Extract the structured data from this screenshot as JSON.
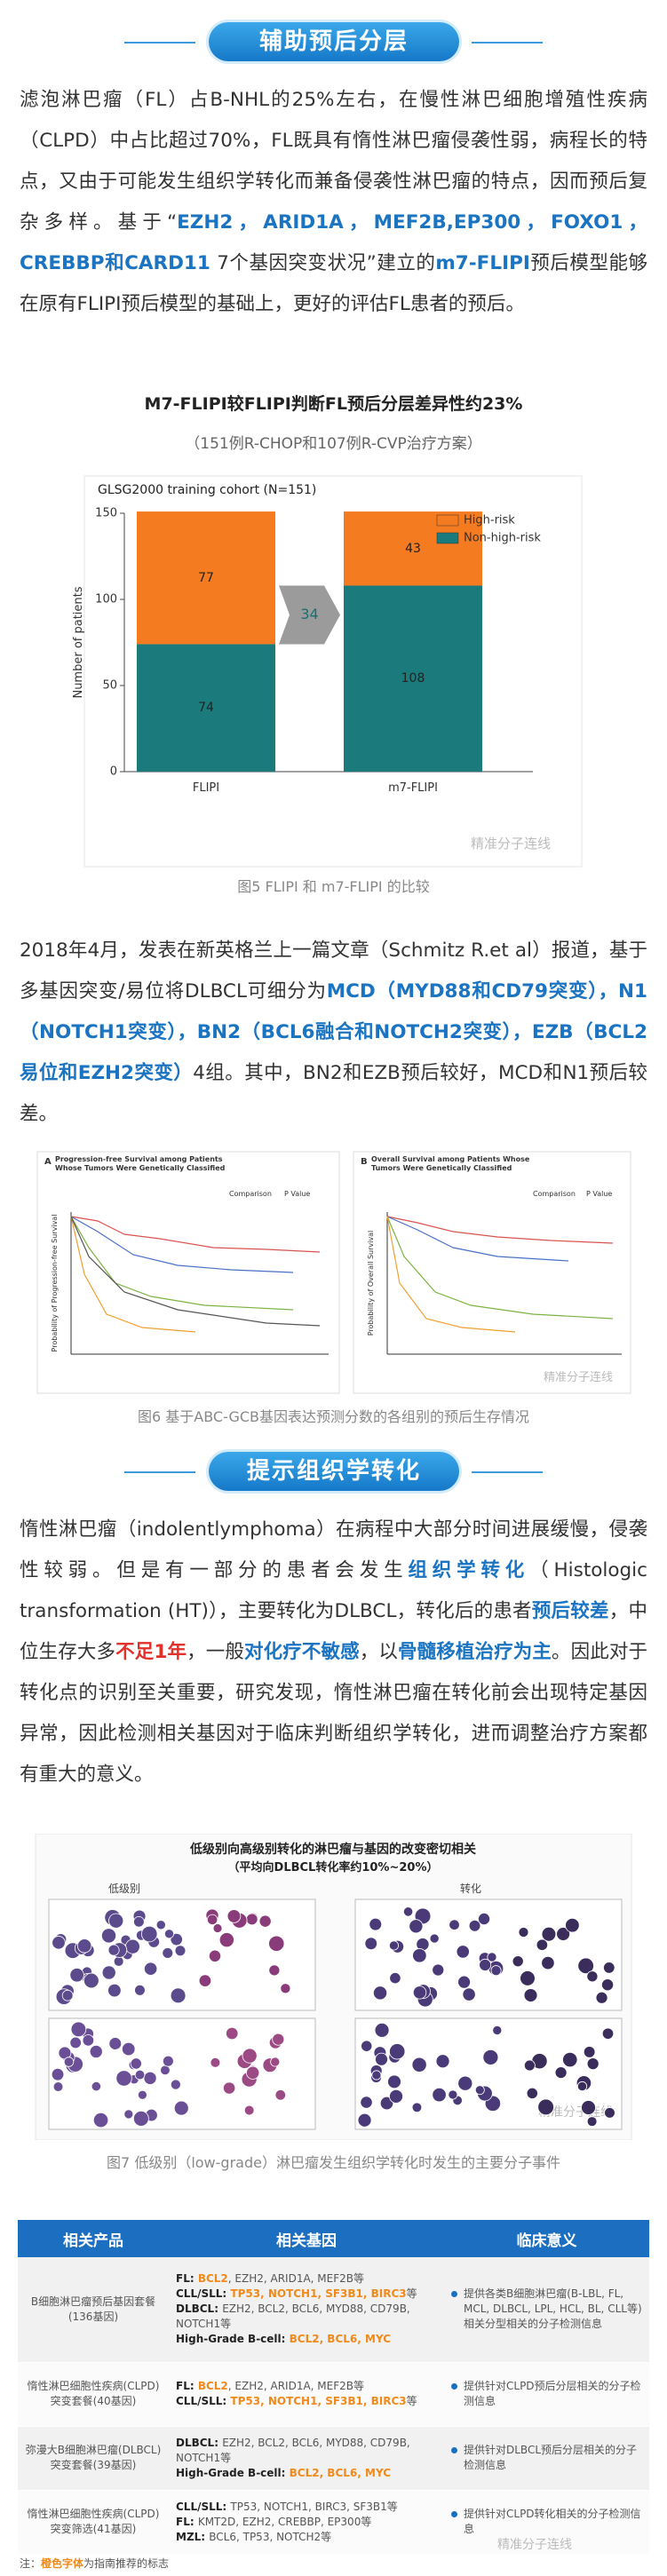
{
  "section1": {
    "header": "辅助预后分层",
    "paragraph": [
      "滤泡淋巴瘤（FL）占B-NHL的25%左右，在慢性淋巴细胞增殖性疾病（CLPD）中占比超过70%，FL既具有惰性淋巴瘤侵袭性弱，病程长的特点，又由于可能发生组织学转化而兼备侵袭性淋巴瘤的特点，因而预后复杂多样。基于“",
      {
        "text": "EZH2，ARID1A，MEF2B,EP300，FOXO1，CREBBP和CARD11",
        "style": "blue"
      },
      " 7个基因突变状况”建立的",
      {
        "text": "m7-FLIPI",
        "style": "blue"
      },
      "预后模型能够在原有FLIPI预后模型的基础上，更好的评估FL患者的预后。"
    ]
  },
  "figure5": {
    "title": "M7-FLIPI较FLIPI判断FL预后分层差异性约23%",
    "subtitle": "（151例R-CHOP和107例R-CVP治疗方案）",
    "caption": "图5 FLIPI 和 m7-FLIPI 的比较"
  },
  "chart_data": {
    "type": "bar",
    "stacked": true,
    "title": "GLSG2000 training cohort (N=151)",
    "categories": [
      "FLIPI",
      "m7-FLIPI"
    ],
    "series": [
      {
        "name": "Non-high-risk",
        "color": "#1b7b7c",
        "values": [
          74,
          108
        ]
      },
      {
        "name": "High-risk",
        "color": "#f47b20",
        "values": [
          77,
          43
        ]
      }
    ],
    "ylabel": "Number of patients",
    "ylim": [
      0,
      150
    ],
    "yticks": [
      0,
      50,
      100,
      150
    ],
    "annotation": 34,
    "legend": "upper right"
  },
  "watermark": "精准分子连线",
  "section2": {
    "paragraph": [
      "2018年4月，发表在新英格兰上一篇文章（Schmitz R.et al）报道，基于多基因突变/易位将DLBCL可细分为",
      {
        "text": "MCD（MYD88和CD79突变），N1（NOTCH1突变），BN2（BCL6融合和NOTCH2突变），EZB（BCL2易位和EZH2突变）",
        "style": "blue"
      },
      "4组。其中，BN2和EZB预后较好，MCD和N1预后较差。"
    ]
  },
  "figure6": {
    "panels": [
      {
        "letter": "A",
        "title": "Progression-free Survival among Patients Whose Tumors Were Genetically Classified",
        "ylabel": "Probability of Progression-free Survival"
      },
      {
        "letter": "B",
        "title": "Overall Survival among Patients Whose Tumors Were Genetically Classified",
        "ylabel": "Probability of Overall Survival"
      }
    ],
    "table_header": [
      "Comparison",
      "P Value"
    ],
    "caption": "图6 基于ABC-GCB基因表达预测分数的各组别的预后生存情况"
  },
  "section3": {
    "header": "提示组织学转化",
    "paragraph": [
      "惰性淋巴瘤（indolentlymphoma）在病程中大部分时间进展缓慢，侵袭性较弱。但是有一部分的患者会发生",
      {
        "text": "组织学转化",
        "style": "blue"
      },
      "（Histologic transformation (HT)），主要转化为DLBCL，转化后的患者",
      {
        "text": "预后较差",
        "style": "blue"
      },
      "，中位生存大多",
      {
        "text": "不足1年",
        "style": "red"
      },
      "，一般",
      {
        "text": "对化疗不敏感",
        "style": "blue"
      },
      "，以",
      {
        "text": "骨髓移植治疗为主",
        "style": "blue"
      },
      "。因此对于转化点的识别至关重要，研究发现，惰性淋巴瘤在转化前会出现特定基因异常，因此检测相关基因对于临床判断组织学转化，进而调整治疗方案都有重大的意义。"
    ]
  },
  "figure7": {
    "title": "低级别向高级别转化的淋巴瘤与基因的改变密切相关",
    "subtitle": "（平均向DLBCL转化率约10%~20%）",
    "labels": [
      "低级别",
      "转化"
    ],
    "caption": "图7 低级别（low-grade）淋巴瘤发生组织学转化时发生的主要分子事件"
  },
  "table": {
    "header": [
      "相关产品",
      "相关基因",
      "临床意义"
    ],
    "rows": [
      {
        "product": "B细胞淋巴瘤预后基因套餐(136基因)",
        "genes": [
          [
            {
              "text": "FL: ",
              "style": "bold"
            },
            {
              "text": "BCL2",
              "style": "orange"
            },
            ", EZH2, ARID1A, MEF2B等"
          ],
          [
            {
              "text": "CLL/SLL: ",
              "style": "bold"
            },
            {
              "text": "TP53, NOTCH1, SF3B1, BIRC3",
              "style": "orange"
            },
            "等"
          ],
          [
            {
              "text": "DLBCL: ",
              "style": "bold"
            },
            "EZH2, BCL2, BCL6, MYD88, CD79B, NOTCH1等"
          ],
          [
            {
              "text": "High-Grade B-cell: ",
              "style": "bold"
            },
            {
              "text": "BCL2, BCL6, MYC",
              "style": "orange"
            }
          ]
        ],
        "significance": "提供各类B细胞淋巴瘤(B-LBL, FL, MCL, DLBCL, LPL, HCL, BL, CLL等)相关分型相关的分子检测信息"
      },
      {
        "product": "惰性淋巴细胞性疾病(CLPD)突变套餐(40基因)",
        "genes": [
          [
            {
              "text": "FL: ",
              "style": "bold"
            },
            {
              "text": "BCL2",
              "style": "orange"
            },
            ", EZH2, ARID1A, MEF2B等"
          ],
          [
            {
              "text": "CLL/SLL: ",
              "style": "bold"
            },
            {
              "text": "TP53, NOTCH1, SF3B1, BIRC3",
              "style": "orange"
            },
            "等"
          ]
        ],
        "significance": "提供针对CLPD预后分层相关的分子检测信息"
      },
      {
        "product": "弥漫大B细胞淋巴瘤(DLBCL)突变套餐(39基因)",
        "genes": [
          [
            {
              "text": "DLBCL: ",
              "style": "bold"
            },
            "EZH2, BCL2, BCL6, MYD88, CD79B, NOTCH1等"
          ],
          [
            {
              "text": "High-Grade B-cell: ",
              "style": "bold"
            },
            {
              "text": "BCL2, BCL6, MYC",
              "style": "orange"
            }
          ]
        ],
        "significance": "提供针对DLBCL预后分层相关的分子检测信息"
      },
      {
        "product": "惰性淋巴细胞性疾病(CLPD)突变筛选(41基因)",
        "genes": [
          [
            {
              "text": "CLL/SLL: ",
              "style": "bold"
            },
            "TP53, NOTCH1, BIRC3, SF3B1等"
          ],
          [
            {
              "text": "FL: ",
              "style": "bold"
            },
            "KMT2D, EZH2, CREBBP, EP300等"
          ],
          [
            {
              "text": "MZL: ",
              "style": "bold"
            },
            "BCL6, TP53, NOTCH2等"
          ]
        ],
        "significance": "提供针对CLPD转化相关的分子检测信息"
      }
    ],
    "footnote": [
      "注：",
      {
        "text": "橙色字体",
        "style": "orange"
      },
      "为指南推荐的标志"
    ]
  }
}
